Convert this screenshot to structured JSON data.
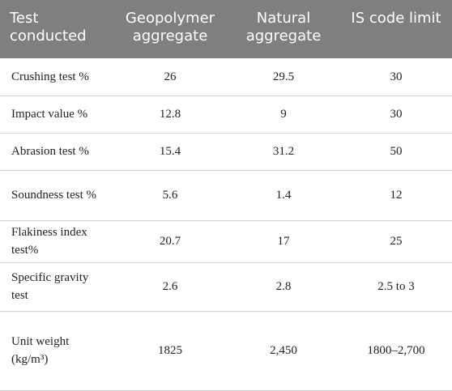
{
  "table": {
    "header": [
      "Test conducted",
      "Geopolymer aggregate",
      "Natural aggregate",
      "IS code limit"
    ],
    "rows": [
      [
        "Crushing test %",
        "26",
        "29.5",
        "30"
      ],
      [
        "Impact value %",
        "12.8",
        "9",
        "30"
      ],
      [
        "Abrasion test %",
        "15.4",
        "31.2",
        "50"
      ],
      [
        "Soundness test %",
        "5.6",
        "1.4",
        "12"
      ],
      [
        "Flakiness index test%",
        "20.7",
        "17",
        "25"
      ],
      [
        "Specific gravity test",
        "2.6",
        "2.8",
        "2.5 to 3"
      ],
      [
        "Unit weight (kg/m³)",
        "1825",
        "2,450",
        "1800–2,700"
      ]
    ]
  }
}
